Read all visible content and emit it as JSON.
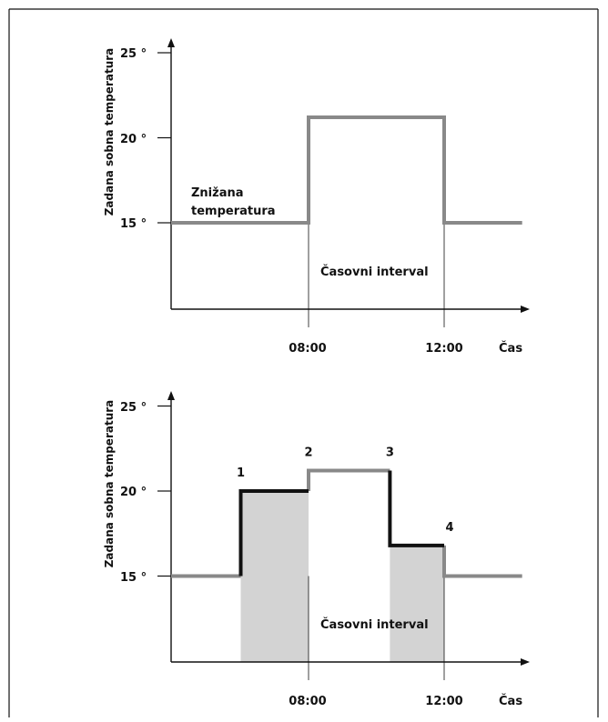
{
  "colors": {
    "gray": "#898989",
    "black": "#111111",
    "shade": "#d3d3d3",
    "axis": "#111111"
  },
  "chart_data": [
    {
      "type": "line",
      "ylabel": "Zadana sobna temperatura",
      "xlabel": "Čas",
      "ytick_labels": [
        "15 °",
        "20 °",
        "25 °"
      ],
      "yticks": [
        15,
        20,
        25
      ],
      "xtick_labels": [
        "08:00",
        "12:00"
      ],
      "xticks": [
        8,
        12
      ],
      "xlim": [
        4,
        14
      ],
      "ylim": [
        10,
        26
      ],
      "annotations": {
        "reduced": [
          "Znižana",
          "temperatura"
        ],
        "interval": "Časovni interval"
      },
      "series": [
        {
          "color": "gray",
          "x": [
            4,
            8,
            8,
            12,
            12,
            14.3
          ],
          "y": [
            15,
            15,
            21.2,
            21.2,
            15,
            15
          ]
        }
      ]
    },
    {
      "type": "line",
      "ylabel": "Zadana sobna temperatura",
      "xlabel": "Čas",
      "ytick_labels": [
        "15 °",
        "20 °",
        "25 °"
      ],
      "yticks": [
        15,
        20,
        25
      ],
      "xtick_labels": [
        "08:00",
        "12:00"
      ],
      "xticks": [
        8,
        12
      ],
      "xlim": [
        4,
        14
      ],
      "ylim": [
        10,
        26
      ],
      "annotations": {
        "interval": "Časovni interval"
      },
      "shaded": [
        {
          "x0": 6,
          "x1": 8,
          "y": 20
        },
        {
          "x0": 10.4,
          "x1": 12,
          "y": 16.8
        }
      ],
      "points": [
        {
          "label": "1",
          "x": 6,
          "y": 20
        },
        {
          "label": "2",
          "x": 8,
          "y": 21.2
        },
        {
          "label": "3",
          "x": 10.4,
          "y": 21.2
        },
        {
          "label": "4",
          "x": 12,
          "y": 16.8
        }
      ],
      "series": [
        {
          "color": "gray",
          "x": [
            4,
            6
          ],
          "y": [
            15,
            15
          ]
        },
        {
          "color": "gray",
          "x": [
            8,
            8,
            10.4
          ],
          "y": [
            20,
            21.2,
            21.2
          ]
        },
        {
          "color": "gray",
          "x": [
            12,
            12,
            14.3
          ],
          "y": [
            16.8,
            15,
            15
          ]
        },
        {
          "color": "black",
          "x": [
            6,
            6,
            8
          ],
          "y": [
            15,
            20,
            20
          ]
        },
        {
          "color": "black",
          "x": [
            10.4,
            10.4,
            12
          ],
          "y": [
            21.2,
            16.8,
            16.8
          ]
        }
      ]
    }
  ]
}
